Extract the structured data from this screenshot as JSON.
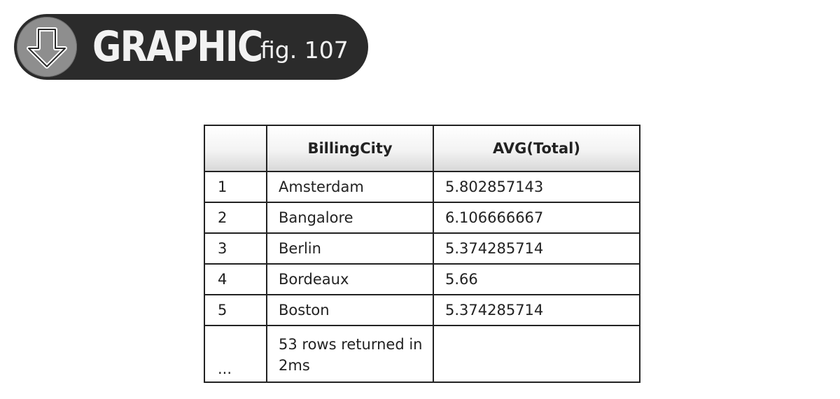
{
  "banner": {
    "icon": "down-arrow-circle-icon",
    "title": "GRAPHIC",
    "figure_label": "fig. 107"
  },
  "results_table": {
    "columns": [
      "",
      "BillingCity",
      "AVG(Total)"
    ],
    "rows": [
      {
        "num": "1",
        "city": "Amsterdam",
        "avg": "5.802857143"
      },
      {
        "num": "2",
        "city": "Bangalore",
        "avg": "6.106666667"
      },
      {
        "num": "3",
        "city": "Berlin",
        "avg": "5.374285714"
      },
      {
        "num": "4",
        "city": "Bordeaux",
        "avg": "5.66"
      },
      {
        "num": "5",
        "city": "Boston",
        "avg": "5.374285714"
      }
    ],
    "footer": {
      "num": "...",
      "message": "53 rows returned in 2ms",
      "avg": ""
    }
  },
  "colors": {
    "banner_bg": "#2b2b2b",
    "icon_circle": "#8e8e8e",
    "banner_text": "#f2f2f2",
    "table_border": "#222222"
  }
}
